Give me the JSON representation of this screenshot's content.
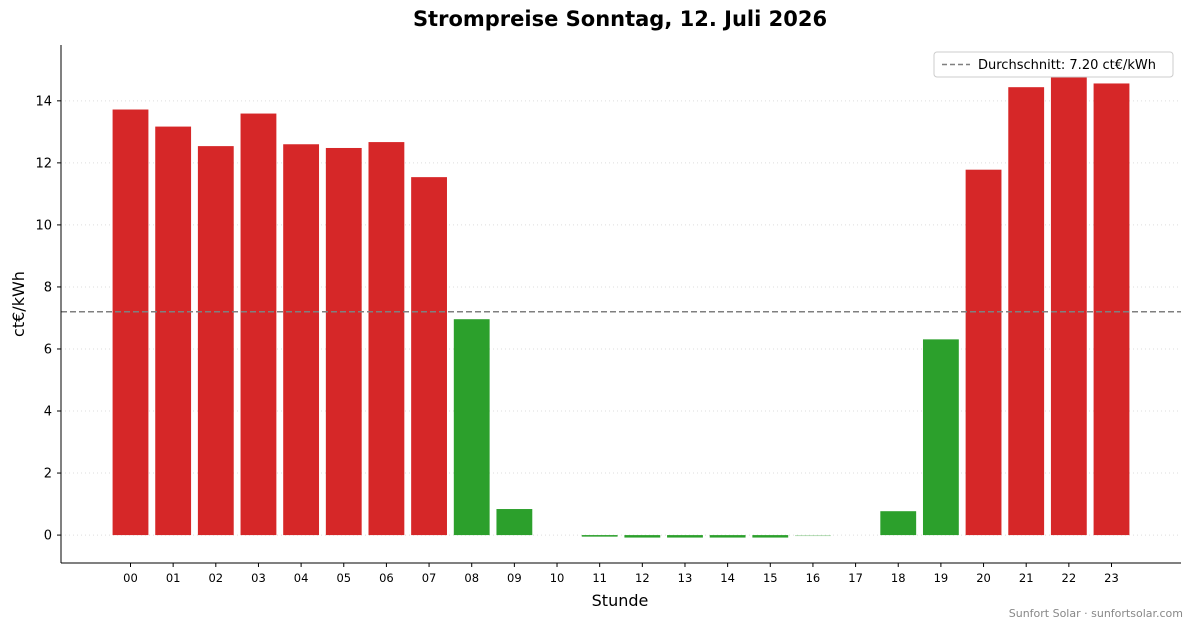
{
  "chart_data": {
    "type": "bar",
    "title": "Strompreise Sonntag, 12. Juli 2026",
    "xlabel": "Stunde",
    "ylabel": "ct€/kWh",
    "categories": [
      "00",
      "01",
      "02",
      "03",
      "04",
      "05",
      "06",
      "07",
      "08",
      "09",
      "10",
      "11",
      "12",
      "13",
      "14",
      "15",
      "16",
      "17",
      "18",
      "19",
      "20",
      "21",
      "22",
      "23"
    ],
    "values": [
      13.72,
      13.17,
      12.54,
      13.59,
      12.6,
      12.48,
      12.67,
      11.54,
      6.96,
      0.84,
      0.0,
      -0.05,
      -0.08,
      -0.08,
      -0.08,
      -0.08,
      -0.02,
      0.0,
      0.77,
      6.31,
      11.78,
      14.44,
      14.95,
      14.56
    ],
    "ylim": [
      -0.9,
      15.8
    ],
    "yticks": [
      0,
      2,
      4,
      6,
      8,
      10,
      12,
      14
    ],
    "grid": "horizontal-dotted",
    "average": {
      "value": 7.2,
      "legend_label": "Durchschnitt: 7.20 ct€/kWh",
      "color": "#7f7f7f"
    },
    "legend_position": "top-right",
    "colors": {
      "above_average": "#d62728",
      "below_average": "#2ca02c",
      "grid": "#dddddd",
      "axis": "#000000"
    }
  },
  "credit": "Sunfort Solar · sunfortsolar.com"
}
